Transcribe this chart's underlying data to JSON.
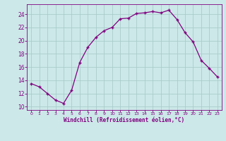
{
  "x": [
    0,
    1,
    2,
    3,
    4,
    5,
    6,
    7,
    8,
    9,
    10,
    11,
    12,
    13,
    14,
    15,
    16,
    17,
    18,
    19,
    20,
    21,
    22,
    23
  ],
  "y": [
    13.5,
    13.0,
    12.0,
    11.0,
    10.5,
    12.5,
    16.7,
    19.0,
    20.5,
    21.5,
    22.0,
    23.3,
    23.4,
    24.1,
    24.2,
    24.4,
    24.2,
    24.6,
    23.2,
    21.2,
    19.8,
    17.0,
    15.8,
    14.5
  ],
  "line_color": "#800080",
  "marker": "+",
  "bg_color": "#cce8e8",
  "grid_color": "#aacccc",
  "xlabel": "Windchill (Refroidissement éolien,°C)",
  "xlabel_color": "#800080",
  "tick_color": "#800080",
  "xlim": [
    -0.5,
    23.5
  ],
  "ylim": [
    9.5,
    25.5
  ],
  "yticks": [
    10,
    12,
    14,
    16,
    18,
    20,
    22,
    24
  ],
  "xticks": [
    0,
    1,
    2,
    3,
    4,
    5,
    6,
    7,
    8,
    9,
    10,
    11,
    12,
    13,
    14,
    15,
    16,
    17,
    18,
    19,
    20,
    21,
    22,
    23
  ],
  "figsize": [
    3.2,
    2.0
  ],
  "dpi": 100
}
